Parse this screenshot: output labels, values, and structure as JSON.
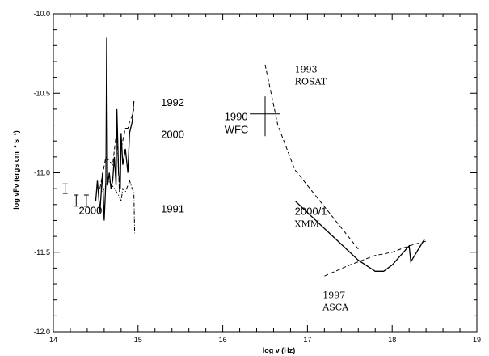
{
  "chart_data": {
    "type": "line",
    "xlabel": "log ν (Hz)",
    "ylabel": "log νFν (ergs cm⁻² s⁻¹)",
    "xlim": [
      14,
      19
    ],
    "ylim": [
      -12.0,
      -10.0
    ],
    "x_ticks": [
      14,
      15,
      16,
      17,
      18,
      19
    ],
    "y_ticks": [
      -12.0,
      -11.5,
      -11.0,
      -10.5,
      -10.0
    ],
    "grid": false,
    "series": [
      {
        "style": "solid",
        "x": [
          14.5,
          14.52,
          14.55,
          14.58,
          14.6,
          14.62,
          14.63,
          14.64,
          14.66,
          14.68,
          14.7,
          14.72,
          14.74,
          14.75,
          14.77,
          14.79,
          14.8,
          14.82,
          14.85,
          14.88,
          14.9,
          14.93,
          14.95
        ],
        "y": [
          -11.18,
          -11.05,
          -11.25,
          -11.0,
          -11.3,
          -11.05,
          -10.15,
          -11.08,
          -11.0,
          -11.1,
          -11.05,
          -10.9,
          -11.08,
          -10.6,
          -11.0,
          -11.1,
          -10.75,
          -10.95,
          -10.85,
          -11.0,
          -10.75,
          -10.68,
          -10.55
        ]
      },
      {
        "style": "dashed",
        "x": [
          14.55,
          14.62,
          14.7,
          14.75,
          14.78,
          14.8,
          14.85,
          14.88,
          14.9,
          14.93,
          14.95
        ],
        "y": [
          -11.1,
          -10.9,
          -10.95,
          -10.72,
          -11.12,
          -10.85,
          -10.72,
          -10.72,
          -10.68,
          -10.64,
          -10.6
        ]
      },
      {
        "style": "dashdot",
        "x": [
          14.58,
          14.65,
          14.72,
          14.78,
          14.8,
          14.82,
          14.85,
          14.88,
          14.9,
          14.93,
          14.95,
          14.96
        ],
        "y": [
          -11.12,
          -11.05,
          -11.1,
          -11.15,
          -11.18,
          -11.1,
          -11.12,
          -11.08,
          -11.05,
          -11.1,
          -11.12,
          -11.38
        ]
      },
      {
        "style": "dashed",
        "x": [
          16.5,
          16.65,
          16.85,
          17.6
        ],
        "y": [
          -10.32,
          -10.7,
          -10.98,
          -11.48
        ]
      },
      {
        "style": "solid",
        "x": [
          16.86,
          17.3,
          17.6,
          17.8,
          17.9,
          18.0,
          18.1,
          18.2,
          18.22,
          18.38
        ],
        "y": [
          -11.18,
          -11.4,
          -11.55,
          -11.62,
          -11.62,
          -11.58,
          -11.52,
          -11.46,
          -11.56,
          -11.42
        ]
      },
      {
        "style": "dashed",
        "x": [
          17.2,
          17.5,
          17.8,
          18.0,
          18.2,
          18.4
        ],
        "y": [
          -11.65,
          -11.58,
          -11.52,
          -11.5,
          -11.46,
          -11.43
        ]
      }
    ],
    "error_bars": [
      {
        "x": 14.14,
        "y": -11.1,
        "ylow": -11.13,
        "yhigh": -11.07
      },
      {
        "x": 14.27,
        "y": -11.18,
        "ylow": -11.21,
        "yhigh": -11.14
      },
      {
        "x": 14.39,
        "y": -11.18,
        "ylow": -11.21,
        "yhigh": -11.14
      }
    ],
    "cross": {
      "x": 16.5,
      "y": -10.63,
      "xlow": 16.32,
      "xhigh": 16.68,
      "ylow": -10.77,
      "yhigh": -10.52
    },
    "annotations": [
      {
        "text": "1992",
        "x": 15.27,
        "y": -10.58,
        "font": "sans"
      },
      {
        "text": "2000",
        "x": 15.27,
        "y": -10.78,
        "font": "sans"
      },
      {
        "text": "1991",
        "x": 15.27,
        "y": -11.25,
        "font": "sans"
      },
      {
        "text": "2000",
        "x": 14.3,
        "y": -11.26,
        "font": "sans"
      },
      {
        "text": "1990",
        "x": 16.02,
        "y": -10.67,
        "font": "sans"
      },
      {
        "text": "WFC",
        "x": 16.02,
        "y": -10.75,
        "font": "sans"
      },
      {
        "text": "1993",
        "x": 16.85,
        "y": -10.37,
        "font": "serif"
      },
      {
        "text": "ROSAT",
        "x": 16.85,
        "y": -10.445,
        "font": "serif"
      },
      {
        "text": "2000/1",
        "x": 16.85,
        "y": -11.265,
        "font": "sans"
      },
      {
        "text": "XMM",
        "x": 16.85,
        "y": -11.34,
        "font": "serif"
      },
      {
        "text": "1997",
        "x": 17.18,
        "y": -11.79,
        "font": "serif"
      },
      {
        "text": "ASCA",
        "x": 17.18,
        "y": -11.865,
        "font": "serif"
      }
    ]
  }
}
